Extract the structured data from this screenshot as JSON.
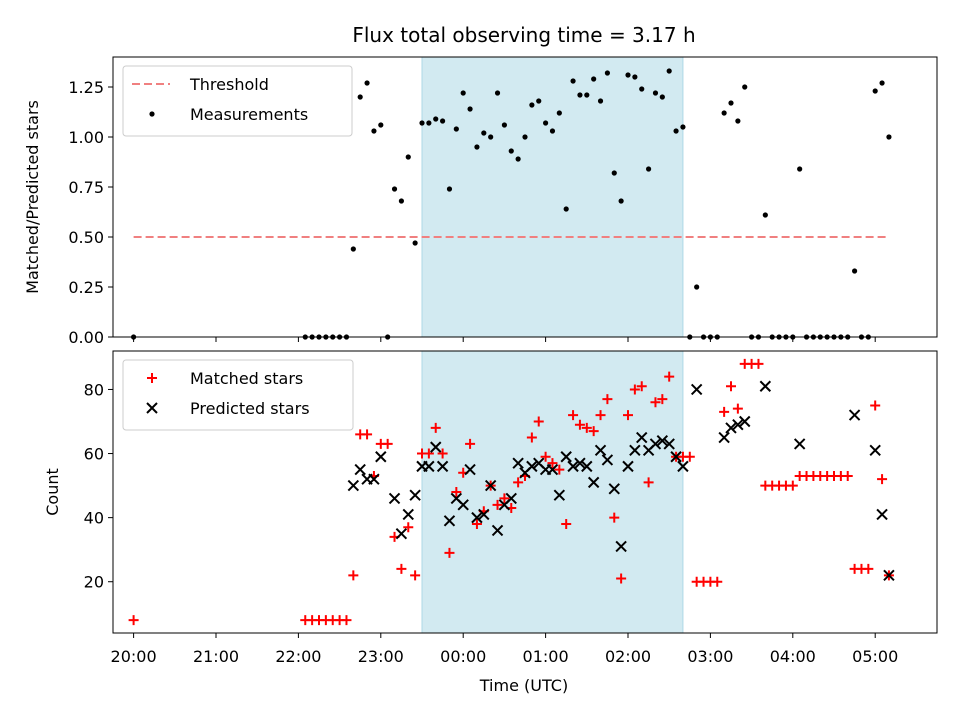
{
  "chart_data": {
    "title": "Flux total observing time = 3.17 h",
    "x_axis": {
      "label": "Time (UTC)",
      "ticks": [
        "20:00",
        "21:00",
        "22:00",
        "23:00",
        "00:00",
        "01:00",
        "02:00",
        "03:00",
        "04:00",
        "05:00"
      ],
      "range": [
        "19:45",
        "05:45"
      ]
    },
    "highlight_window": {
      "start": "23:30",
      "end": "02:40",
      "color": "#add8e6"
    },
    "panels": [
      {
        "type": "scatter",
        "ylabel": "Matched/Predicted stars",
        "ylim": [
          0,
          1.4
        ],
        "yticks": [
          "0.00",
          "0.25",
          "0.50",
          "0.75",
          "1.00",
          "1.25"
        ],
        "legend_position": "upper-left",
        "threshold": {
          "name": "Threshold",
          "value": 0.5,
          "x_start": "20:00",
          "x_end": "05:10",
          "color": "#f08080",
          "style": "dashed"
        },
        "series": [
          {
            "name": "Measurements",
            "color": "#000000",
            "marker": "dot",
            "points": [
              [
                "20:00",
                0.0
              ],
              [
                "22:05",
                0.0
              ],
              [
                "22:10",
                0.0
              ],
              [
                "22:15",
                0.0
              ],
              [
                "22:20",
                0.0
              ],
              [
                "22:25",
                0.0
              ],
              [
                "22:30",
                0.0
              ],
              [
                "22:35",
                0.0
              ],
              [
                "22:40",
                0.44
              ],
              [
                "22:45",
                1.2
              ],
              [
                "22:50",
                1.27
              ],
              [
                "22:55",
                1.03
              ],
              [
                "23:00",
                1.06
              ],
              [
                "23:05",
                0.0
              ],
              [
                "23:10",
                0.74
              ],
              [
                "23:15",
                0.68
              ],
              [
                "23:20",
                0.9
              ],
              [
                "23:25",
                0.47
              ],
              [
                "23:30",
                1.07
              ],
              [
                "23:35",
                1.07
              ],
              [
                "23:40",
                1.09
              ],
              [
                "23:45",
                1.08
              ],
              [
                "23:50",
                0.74
              ],
              [
                "23:55",
                1.04
              ],
              [
                "00:00",
                1.22
              ],
              [
                "00:05",
                1.14
              ],
              [
                "00:10",
                0.95
              ],
              [
                "00:15",
                1.02
              ],
              [
                "00:20",
                1.0
              ],
              [
                "00:25",
                1.22
              ],
              [
                "00:30",
                1.06
              ],
              [
                "00:35",
                0.93
              ],
              [
                "00:40",
                0.89
              ],
              [
                "00:45",
                1.0
              ],
              [
                "00:50",
                1.16
              ],
              [
                "00:55",
                1.18
              ],
              [
                "01:00",
                1.07
              ],
              [
                "01:05",
                1.03
              ],
              [
                "01:10",
                1.12
              ],
              [
                "01:15",
                0.64
              ],
              [
                "01:20",
                1.28
              ],
              [
                "01:25",
                1.21
              ],
              [
                "01:30",
                1.21
              ],
              [
                "01:35",
                1.29
              ],
              [
                "01:40",
                1.18
              ],
              [
                "01:45",
                1.32
              ],
              [
                "01:50",
                0.82
              ],
              [
                "01:55",
                0.68
              ],
              [
                "02:00",
                1.31
              ],
              [
                "02:05",
                1.3
              ],
              [
                "02:10",
                1.24
              ],
              [
                "02:15",
                0.84
              ],
              [
                "02:20",
                1.22
              ],
              [
                "02:25",
                1.2
              ],
              [
                "02:30",
                1.33
              ],
              [
                "02:35",
                1.03
              ],
              [
                "02:40",
                1.05
              ],
              [
                "02:45",
                0.0
              ],
              [
                "02:50",
                0.25
              ],
              [
                "02:55",
                0.0
              ],
              [
                "03:00",
                0.0
              ],
              [
                "03:05",
                0.0
              ],
              [
                "03:10",
                1.12
              ],
              [
                "03:15",
                1.17
              ],
              [
                "03:20",
                1.08
              ],
              [
                "03:25",
                1.25
              ],
              [
                "03:30",
                0.0
              ],
              [
                "03:35",
                0.0
              ],
              [
                "03:40",
                0.61
              ],
              [
                "03:45",
                0.0
              ],
              [
                "03:50",
                0.0
              ],
              [
                "03:55",
                0.0
              ],
              [
                "04:00",
                0.0
              ],
              [
                "04:05",
                0.84
              ],
              [
                "04:10",
                0.0
              ],
              [
                "04:15",
                0.0
              ],
              [
                "04:20",
                0.0
              ],
              [
                "04:25",
                0.0
              ],
              [
                "04:30",
                0.0
              ],
              [
                "04:35",
                0.0
              ],
              [
                "04:40",
                0.0
              ],
              [
                "04:45",
                0.33
              ],
              [
                "04:50",
                0.0
              ],
              [
                "04:55",
                0.0
              ],
              [
                "05:00",
                1.23
              ],
              [
                "05:05",
                1.27
              ],
              [
                "05:10",
                1.0
              ]
            ]
          }
        ]
      },
      {
        "type": "scatter",
        "ylabel": "Count",
        "ylim": [
          4,
          92
        ],
        "yticks": [
          "20",
          "40",
          "60",
          "80"
        ],
        "legend_position": "upper-left",
        "series": [
          {
            "name": "Matched stars",
            "color": "#ff0000",
            "marker": "plus",
            "points": [
              [
                "20:00",
                8
              ],
              [
                "22:05",
                8
              ],
              [
                "22:10",
                8
              ],
              [
                "22:15",
                8
              ],
              [
                "22:20",
                8
              ],
              [
                "22:25",
                8
              ],
              [
                "22:30",
                8
              ],
              [
                "22:35",
                8
              ],
              [
                "22:40",
                22
              ],
              [
                "22:45",
                66
              ],
              [
                "22:50",
                66
              ],
              [
                "22:55",
                53
              ],
              [
                "23:00",
                63
              ],
              [
                "23:05",
                63
              ],
              [
                "23:10",
                34
              ],
              [
                "23:15",
                24
              ],
              [
                "23:20",
                37
              ],
              [
                "23:25",
                22
              ],
              [
                "23:30",
                60
              ],
              [
                "23:35",
                60
              ],
              [
                "23:40",
                68
              ],
              [
                "23:45",
                60
              ],
              [
                "23:50",
                29
              ],
              [
                "23:55",
                48
              ],
              [
                "00:00",
                54
              ],
              [
                "00:05",
                63
              ],
              [
                "00:10",
                38
              ],
              [
                "00:15",
                42
              ],
              [
                "00:20",
                50
              ],
              [
                "00:25",
                44
              ],
              [
                "00:30",
                46
              ],
              [
                "00:35",
                43
              ],
              [
                "00:40",
                51
              ],
              [
                "00:45",
                53
              ],
              [
                "00:50",
                65
              ],
              [
                "00:55",
                70
              ],
              [
                "01:00",
                59
              ],
              [
                "01:05",
                57
              ],
              [
                "01:10",
                55
              ],
              [
                "01:15",
                38
              ],
              [
                "01:20",
                72
              ],
              [
                "01:25",
                69
              ],
              [
                "01:30",
                68
              ],
              [
                "01:35",
                67
              ],
              [
                "01:40",
                72
              ],
              [
                "01:45",
                77
              ],
              [
                "01:50",
                40
              ],
              [
                "01:55",
                21
              ],
              [
                "02:00",
                72
              ],
              [
                "02:05",
                80
              ],
              [
                "02:10",
                81
              ],
              [
                "02:15",
                51
              ],
              [
                "02:20",
                76
              ],
              [
                "02:25",
                77
              ],
              [
                "02:30",
                84
              ],
              [
                "02:35",
                59
              ],
              [
                "02:40",
                59
              ],
              [
                "02:45",
                59
              ],
              [
                "02:50",
                20
              ],
              [
                "02:55",
                20
              ],
              [
                "03:00",
                20
              ],
              [
                "03:05",
                20
              ],
              [
                "03:10",
                73
              ],
              [
                "03:15",
                81
              ],
              [
                "03:20",
                74
              ],
              [
                "03:25",
                88
              ],
              [
                "03:30",
                88
              ],
              [
                "03:35",
                88
              ],
              [
                "03:40",
                50
              ],
              [
                "03:45",
                50
              ],
              [
                "03:50",
                50
              ],
              [
                "03:55",
                50
              ],
              [
                "04:00",
                50
              ],
              [
                "04:05",
                53
              ],
              [
                "04:10",
                53
              ],
              [
                "04:15",
                53
              ],
              [
                "04:20",
                53
              ],
              [
                "04:25",
                53
              ],
              [
                "04:30",
                53
              ],
              [
                "04:35",
                53
              ],
              [
                "04:40",
                53
              ],
              [
                "04:45",
                24
              ],
              [
                "04:50",
                24
              ],
              [
                "04:55",
                24
              ],
              [
                "05:00",
                75
              ],
              [
                "05:05",
                52
              ],
              [
                "05:10",
                22
              ]
            ]
          },
          {
            "name": "Predicted stars",
            "color": "#000000",
            "marker": "x",
            "points": [
              [
                "22:40",
                50
              ],
              [
                "22:45",
                55
              ],
              [
                "22:50",
                52
              ],
              [
                "22:55",
                52
              ],
              [
                "23:00",
                59
              ],
              [
                "23:10",
                46
              ],
              [
                "23:15",
                35
              ],
              [
                "23:20",
                41
              ],
              [
                "23:25",
                47
              ],
              [
                "23:30",
                56
              ],
              [
                "23:35",
                56
              ],
              [
                "23:40",
                62
              ],
              [
                "23:45",
                56
              ],
              [
                "23:50",
                39
              ],
              [
                "23:55",
                46
              ],
              [
                "00:00",
                44
              ],
              [
                "00:05",
                55
              ],
              [
                "00:10",
                40
              ],
              [
                "00:15",
                41
              ],
              [
                "00:20",
                50
              ],
              [
                "00:25",
                36
              ],
              [
                "00:30",
                44
              ],
              [
                "00:35",
                46
              ],
              [
                "00:40",
                57
              ],
              [
                "00:45",
                54
              ],
              [
                "00:50",
                56
              ],
              [
                "00:55",
                57
              ],
              [
                "01:00",
                55
              ],
              [
                "01:05",
                55
              ],
              [
                "01:10",
                47
              ],
              [
                "01:15",
                59
              ],
              [
                "01:20",
                56
              ],
              [
                "01:25",
                57
              ],
              [
                "01:30",
                56
              ],
              [
                "01:35",
                51
              ],
              [
                "01:40",
                61
              ],
              [
                "01:45",
                58
              ],
              [
                "01:50",
                49
              ],
              [
                "01:55",
                31
              ],
              [
                "02:00",
                56
              ],
              [
                "02:05",
                61
              ],
              [
                "02:10",
                65
              ],
              [
                "02:15",
                61
              ],
              [
                "02:20",
                63
              ],
              [
                "02:25",
                64
              ],
              [
                "02:30",
                63
              ],
              [
                "02:35",
                59
              ],
              [
                "02:40",
                56
              ],
              [
                "02:50",
                80
              ],
              [
                "03:10",
                65
              ],
              [
                "03:15",
                68
              ],
              [
                "03:20",
                69
              ],
              [
                "03:25",
                70
              ],
              [
                "03:40",
                81
              ],
              [
                "04:05",
                63
              ],
              [
                "04:45",
                72
              ],
              [
                "05:00",
                61
              ],
              [
                "05:05",
                41
              ],
              [
                "05:10",
                22
              ]
            ]
          }
        ]
      }
    ]
  }
}
